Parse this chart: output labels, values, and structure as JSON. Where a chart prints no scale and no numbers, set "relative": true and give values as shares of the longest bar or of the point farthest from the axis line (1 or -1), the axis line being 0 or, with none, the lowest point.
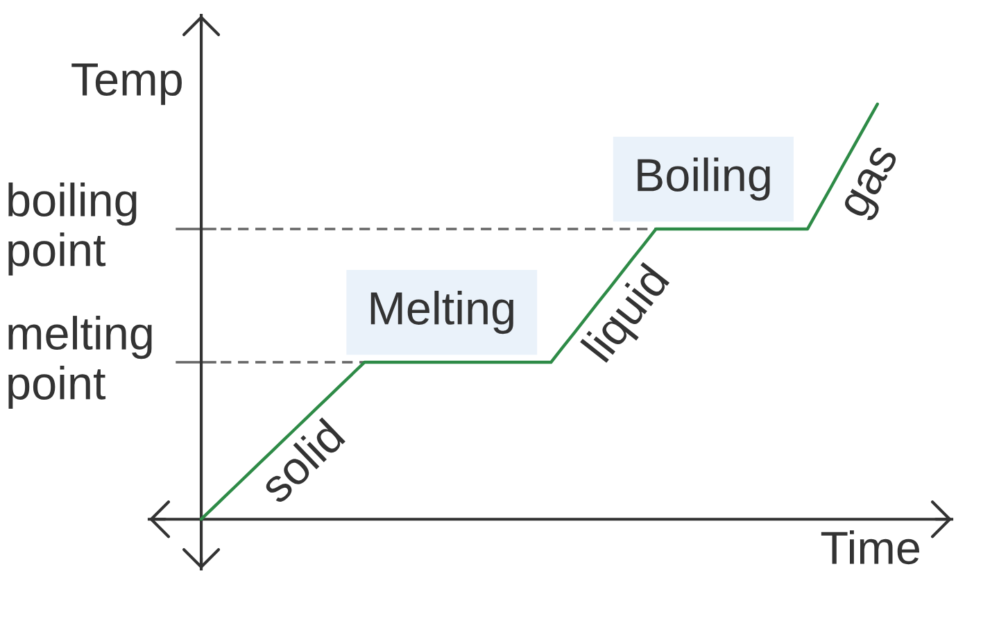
{
  "chart_data": {
    "type": "line",
    "relative": true,
    "categories": [
      null,
      null,
      null,
      null,
      null,
      null,
      null,
      null,
      null,
      null,
      null,
      null,
      null,
      null,
      null,
      null,
      null,
      null,
      null,
      null,
      null,
      null,
      null,
      null,
      null,
      null,
      null,
      null,
      null,
      null,
      null,
      null,
      null,
      null,
      null,
      null,
      null,
      null,
      null,
      null,
      null,
      null,
      null,
      null,
      null,
      null,
      null,
      null,
      null,
      null,
      null,
      null,
      null,
      null,
      null,
      null,
      null,
      null,
      null
    ],
    "series": [
      {
        "color": "#2e8b47",
        "values": [
          0,
          0.027,
          0.054,
          0.081,
          0.108,
          0.135,
          0.162,
          0.189,
          0.216,
          0.243,
          0.27,
          0.297,
          0.324,
          0.351,
          0.378,
          0.378,
          0.378,
          0.378,
          0.378,
          0.378,
          0.378,
          0.378,
          0.378,
          0.378,
          0.378,
          0.378,
          0.378,
          0.378,
          0.378,
          0.378,
          0.378,
          0.414,
          0.449,
          0.485,
          0.521,
          0.556,
          0.592,
          0.628,
          0.663,
          0.699,
          0.699,
          0.699,
          0.699,
          0.699,
          0.699,
          0.699,
          0.699,
          0.699,
          0.699,
          0.699,
          0.699,
          0.699,
          0.699,
          0.749,
          0.799,
          0.85,
          0.9,
          0.95,
          1
        ]
      }
    ],
    "xlabel": "Time",
    "ylabel": "Temp",
    "ref_lines": [
      {
        "axis": "y",
        "value": 0.699,
        "label": "boiling point",
        "color": "#666666",
        "line_style": "dashed"
      },
      {
        "axis": "y",
        "value": 0.378,
        "label": "melting point",
        "color": "#666666",
        "line_style": "dashed"
      }
    ],
    "annotations": [
      "solid",
      "Melting",
      "liquid",
      "Boiling",
      "gas"
    ]
  }
}
